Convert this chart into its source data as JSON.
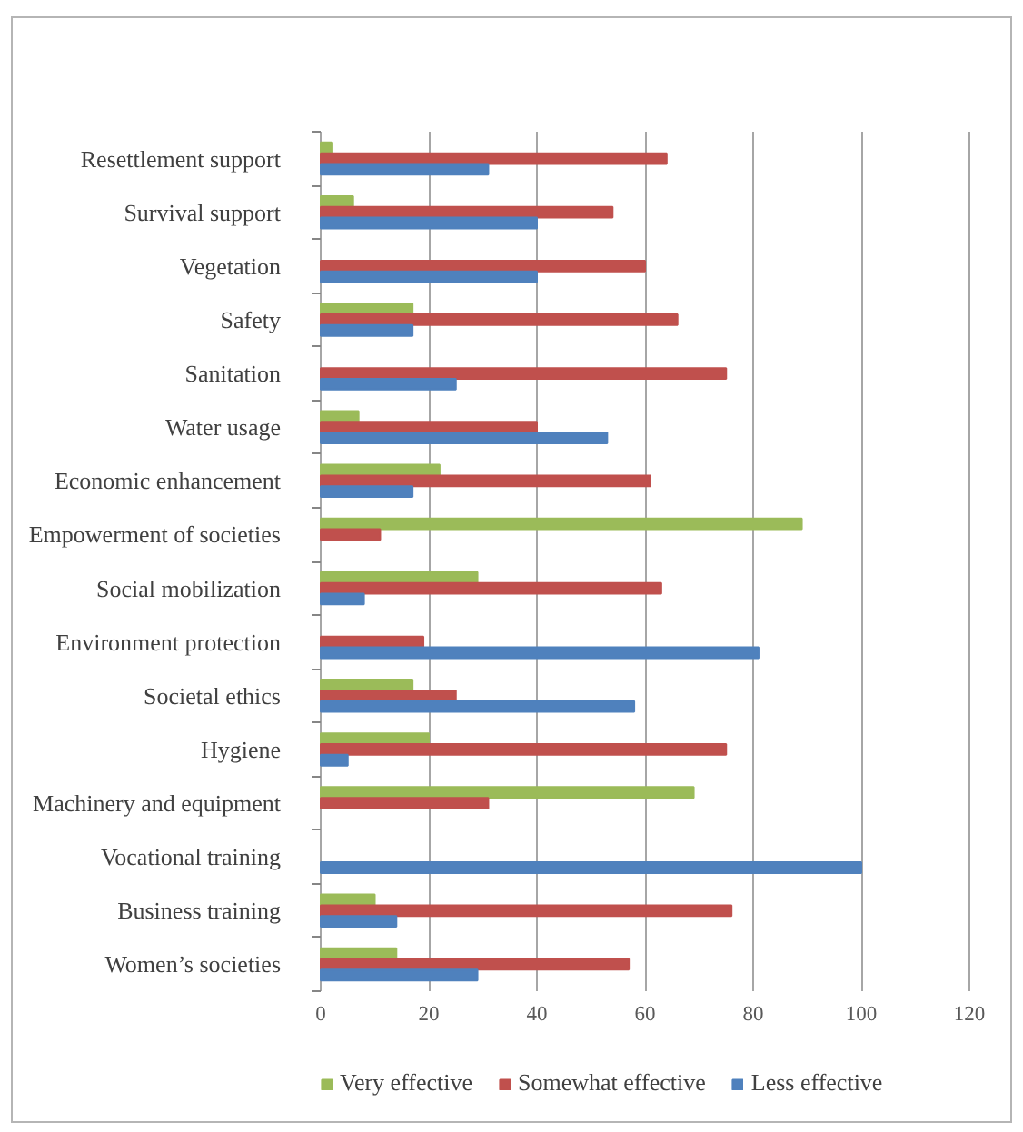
{
  "chart_data": {
    "type": "bar",
    "orientation": "horizontal",
    "categories": [
      "Resettlement support",
      "Survival support",
      "Vegetation",
      "Safety",
      "Sanitation",
      "Water usage",
      "Economic enhancement",
      "Empowerment of societies",
      "Social mobilization",
      "Environment protection",
      "Societal ethics",
      "Hygiene",
      "Machinery and equipment",
      "Vocational training",
      "Business training",
      "Women’s societies"
    ],
    "series": [
      {
        "name": "Very effective",
        "color": "#9bbb59",
        "values": [
          2,
          6,
          null,
          17,
          null,
          7,
          22,
          89,
          29,
          null,
          17,
          20,
          69,
          null,
          10,
          14
        ]
      },
      {
        "name": "Somewhat effective",
        "color": "#c0504d",
        "values": [
          64,
          54,
          60,
          66,
          75,
          40,
          61,
          11,
          63,
          19,
          25,
          75,
          31,
          null,
          76,
          57
        ]
      },
      {
        "name": "Less effective",
        "color": "#4f81bd",
        "values": [
          31,
          40,
          40,
          17,
          25,
          53,
          17,
          null,
          8,
          81,
          58,
          5,
          null,
          100,
          14,
          29
        ]
      }
    ],
    "xlim": [
      0,
      120
    ],
    "xticks": [
      0,
      20,
      40,
      60,
      80,
      100,
      120
    ],
    "grid": "x",
    "legend": "bottom"
  }
}
